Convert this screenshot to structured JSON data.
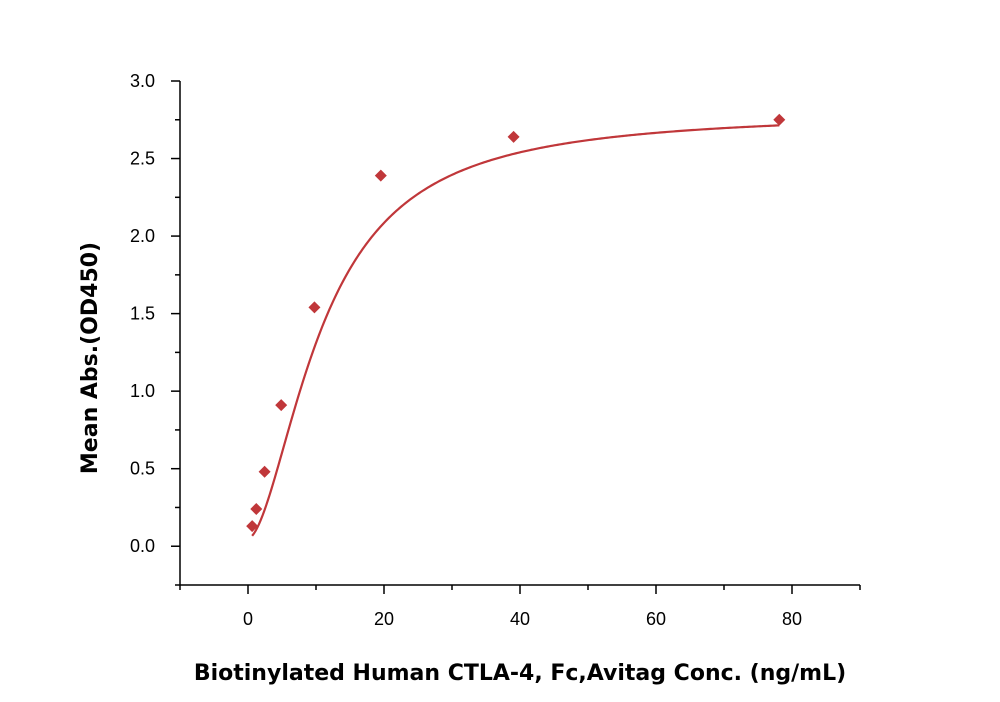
{
  "chart_data": {
    "type": "scatter",
    "xlabel": "Biotinylated Human CTLA-4, Fc,Avitag Conc. (ng/mL)",
    "ylabel": "Mean Abs.(OD450)",
    "xlim": [
      -10,
      90
    ],
    "ylim": [
      -0.25,
      3.0
    ],
    "xticks": [
      0,
      20,
      40,
      60,
      80
    ],
    "xtick_labels": [
      "0",
      "20",
      "40",
      "60",
      "80"
    ],
    "yticks": [
      0.0,
      0.5,
      1.0,
      1.5,
      2.0,
      2.5,
      3.0
    ],
    "ytick_labels": [
      "0.0",
      "0.5",
      "1.0",
      "1.5",
      "2.0",
      "2.5",
      "3.0"
    ],
    "grid": false,
    "series": [
      {
        "color": "#c0373a",
        "marker": "diamond",
        "x": [
          0.61,
          1.22,
          2.44,
          4.88,
          9.77,
          19.53,
          39.06,
          78.13
        ],
        "y": [
          0.13,
          0.24,
          0.48,
          0.91,
          1.54,
          2.39,
          2.64,
          2.75
        ]
      }
    ],
    "fit_curve": {
      "model": "4PL",
      "color": "#c0373a",
      "params": {
        "bottom": 0.05,
        "top": 2.8,
        "ec50": 11.0,
        "hill": 1.75
      }
    }
  }
}
